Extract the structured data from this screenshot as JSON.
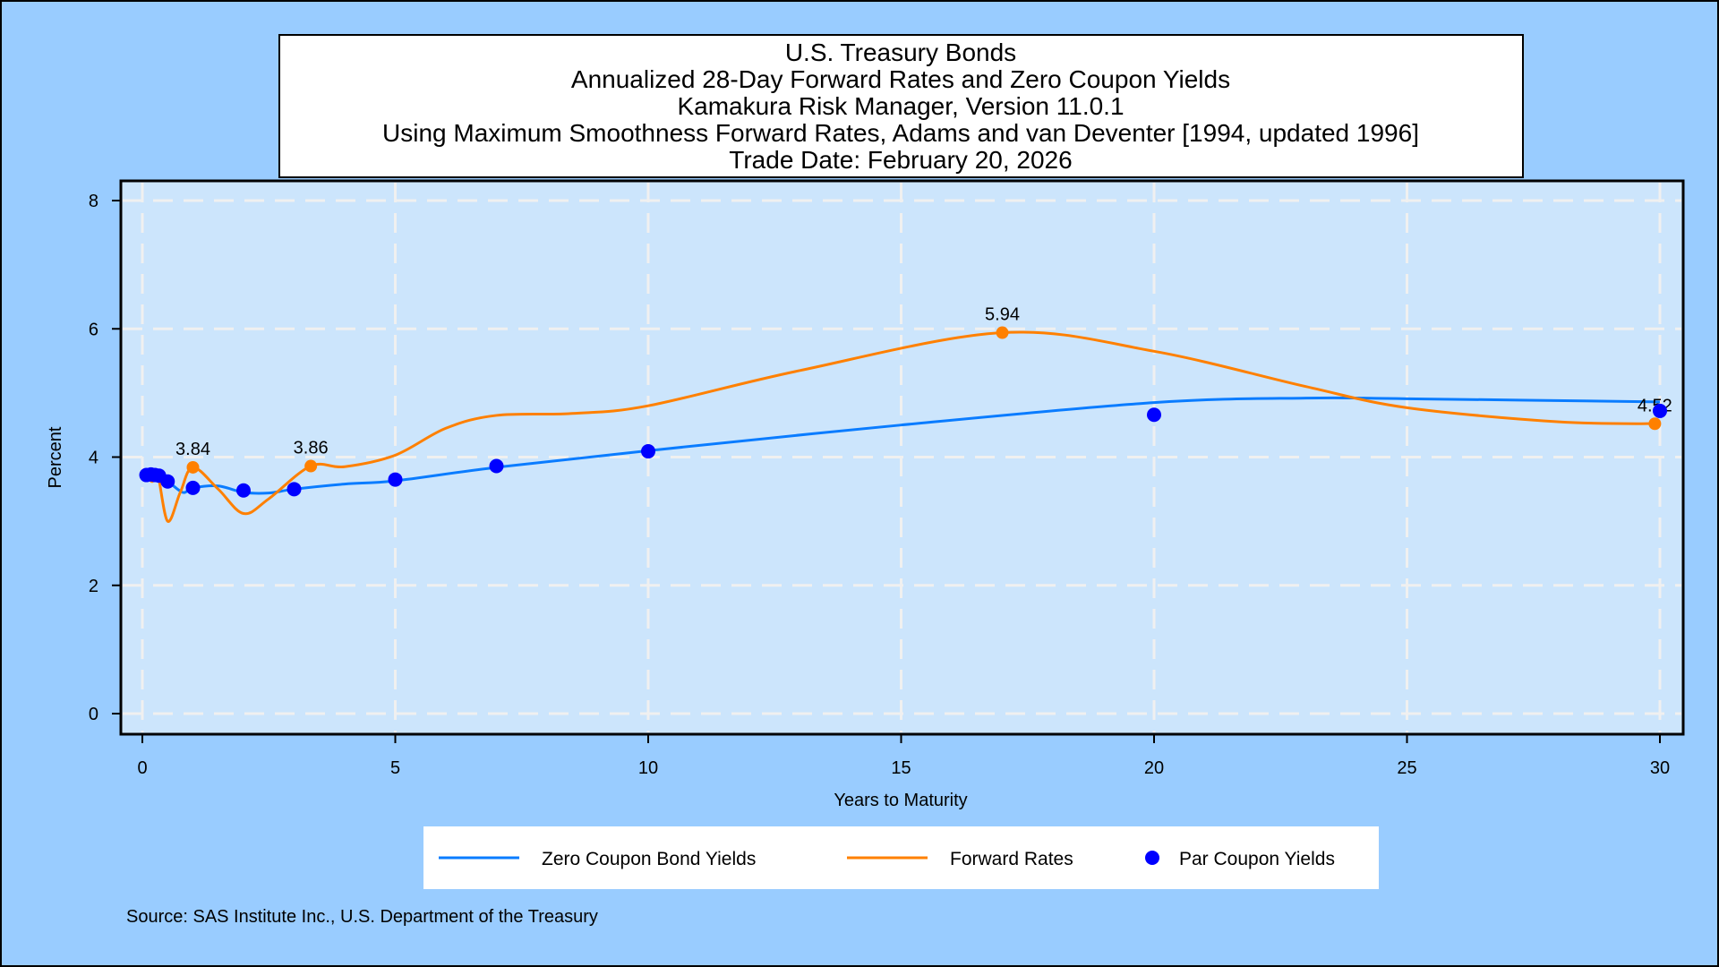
{
  "chart_data": {
    "type": "line",
    "title_lines": [
      "U.S. Treasury Bonds",
      "Annualized 28-Day Forward Rates and Zero Coupon Yields",
      "Kamakura Risk Manager, Version 11.0.1",
      "Using Maximum Smoothness Forward Rates, Adams and van Deventer [1994, updated 1996]",
      "Trade Date: February 20, 2026"
    ],
    "xlabel": "Years to Maturity",
    "ylabel": "Percent",
    "xlim": [
      0,
      30
    ],
    "ylim": [
      0,
      8
    ],
    "xticks": [
      0,
      5,
      10,
      15,
      20,
      25,
      30
    ],
    "yticks": [
      0,
      2,
      4,
      6,
      8
    ],
    "grid": true,
    "series": [
      {
        "name": "Zero Coupon Bond Yields",
        "color": "#0a7cff",
        "type": "line",
        "x": [
          0.08,
          0.25,
          0.5,
          0.8,
          1,
          1.5,
          2,
          2.5,
          3,
          4,
          5,
          7,
          10,
          15,
          20,
          23,
          25,
          30
        ],
        "y": [
          3.72,
          3.7,
          3.62,
          3.45,
          3.52,
          3.55,
          3.45,
          3.44,
          3.5,
          3.58,
          3.63,
          3.84,
          4.1,
          4.5,
          4.85,
          4.92,
          4.91,
          4.86
        ]
      },
      {
        "name": "Forward Rates",
        "color": "#ff8000",
        "type": "line",
        "x": [
          0.08,
          0.2,
          0.3,
          0.5,
          0.75,
          1,
          1.5,
          2,
          2.5,
          3.33,
          4,
          5,
          6,
          7,
          8.5,
          10,
          13,
          17,
          20,
          23,
          25,
          28,
          30
        ],
        "y": [
          3.7,
          3.62,
          3.75,
          3.0,
          3.45,
          3.84,
          3.5,
          3.12,
          3.35,
          3.86,
          3.85,
          4.03,
          4.45,
          4.65,
          4.68,
          4.8,
          5.35,
          5.94,
          5.65,
          5.1,
          4.77,
          4.55,
          4.52
        ],
        "labeled_points": [
          {
            "x": 1,
            "y": 3.84,
            "label": "3.84"
          },
          {
            "x": 3.33,
            "y": 3.86,
            "label": "3.86"
          },
          {
            "x": 17,
            "y": 5.94,
            "label": "5.94"
          },
          {
            "x": 29.9,
            "y": 4.52,
            "label": "4.52"
          }
        ]
      },
      {
        "name": "Par Coupon Yields",
        "color": "#0000ff",
        "type": "scatter",
        "x": [
          0.08,
          0.17,
          0.25,
          0.33,
          0.5,
          1,
          2,
          3,
          5,
          7,
          10,
          20,
          30
        ],
        "y": [
          3.72,
          3.73,
          3.72,
          3.71,
          3.62,
          3.52,
          3.48,
          3.5,
          3.65,
          3.86,
          4.09,
          4.66,
          4.72
        ]
      }
    ],
    "legend_placement": "bottom",
    "source": "Source: SAS Institute Inc., U.S. Department of the Treasury"
  }
}
